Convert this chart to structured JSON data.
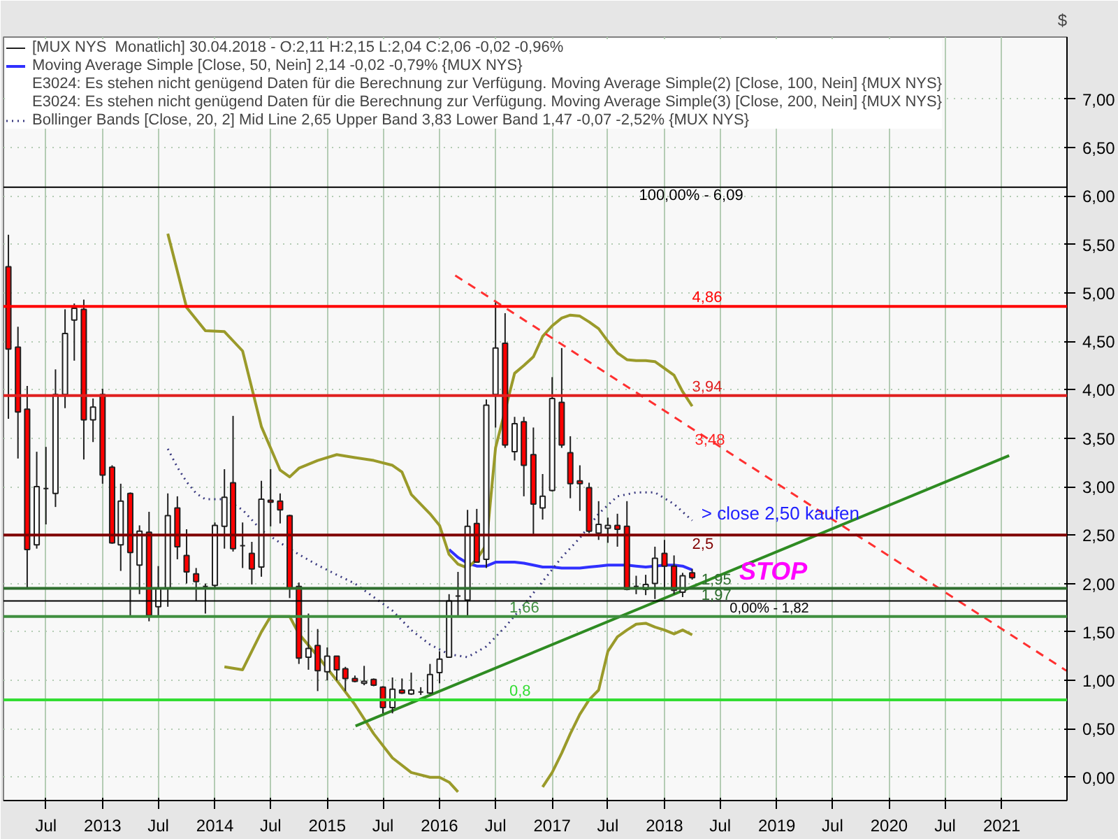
{
  "chart_data": {
    "type": "candlestick",
    "ylabel": "$",
    "legend": "top left",
    "grid": true,
    "xlim": [
      "2012-02-14",
      "2021-08-01"
    ],
    "ylim": [
      -0.24,
      7.64
    ],
    "xticks": [
      {
        "value": "2012-07",
        "label": "Jul"
      },
      {
        "value": "2013-01",
        "label": "2013"
      },
      {
        "value": "2013-07",
        "label": "Jul"
      },
      {
        "value": "2014-01",
        "label": "2014"
      },
      {
        "value": "2014-07",
        "label": "Jul"
      },
      {
        "value": "2015-01",
        "label": "2015"
      },
      {
        "value": "2015-07",
        "label": "Jul"
      },
      {
        "value": "2016-01",
        "label": "2016"
      },
      {
        "value": "2016-07",
        "label": "Jul"
      },
      {
        "value": "2017-01",
        "label": "2017"
      },
      {
        "value": "2017-07",
        "label": "Jul"
      },
      {
        "value": "2018-01",
        "label": "2018"
      },
      {
        "value": "2018-07",
        "label": "Jul"
      },
      {
        "value": "2019-01",
        "label": "2019"
      },
      {
        "value": "2019-07",
        "label": "Jul"
      },
      {
        "value": "2020-01",
        "label": "2020"
      },
      {
        "value": "2020-07",
        "label": "Jul"
      },
      {
        "value": "2021-01",
        "label": "2021"
      }
    ],
    "yticks": [
      {
        "value": 0,
        "label": "0,00"
      },
      {
        "value": 0.5,
        "label": "0,50"
      },
      {
        "value": 1,
        "label": "1,00"
      },
      {
        "value": 1.5,
        "label": "1,50"
      },
      {
        "value": 2,
        "label": "2,00"
      },
      {
        "value": 2.5,
        "label": "2,50"
      },
      {
        "value": 3,
        "label": "3,00"
      },
      {
        "value": 3.5,
        "label": "3,50"
      },
      {
        "value": 4,
        "label": "4,00"
      },
      {
        "value": 4.5,
        "label": "4,50"
      },
      {
        "value": 5,
        "label": "5,00"
      },
      {
        "value": 5.5,
        "label": "5,50"
      },
      {
        "value": 6,
        "label": "6,00"
      },
      {
        "value": 6.5,
        "label": "6,50"
      },
      {
        "value": 7,
        "label": "7,00"
      }
    ],
    "series": [
      {
        "name": "[MUX NYS  Monatlich] 30.04.2018 - O:2,11 H:2,15 L:2,04 C:2,06 -0,02 -0,96%",
        "colors": [
          "#ff0000",
          "#ff0000",
          "#ff0000",
          "#ffffff",
          "#202020",
          "#ffffff",
          "#ffffff",
          "#ffffff",
          "#ff0000",
          "#ffffff",
          "#ff0000",
          "#ff0000",
          "#ffffff",
          "#ff0000",
          "#ffffff",
          "#ff0000",
          "#ffffff",
          "#ffffff",
          "#ff0000",
          "#ff0000",
          "#ff0000",
          "#202020",
          "#ffffff",
          "#ffffff",
          "#ff0000",
          "#202020",
          "#ff0000",
          "#ffffff",
          "#ff0000",
          "#ff0000",
          "#ff0000",
          "#ff0000",
          "#ffffff",
          "#ff0000",
          "#ffffff",
          "#ff0000",
          "#ff0000",
          "#ff0000",
          "#ffffff",
          "#ff0000",
          "#ff0000",
          "#ffffff",
          "#ff0000",
          "#ffffff",
          "#202020",
          "#ffffff",
          "#ffffff",
          "#ffffff",
          "#202020",
          "#ffffff",
          "#ff0000",
          "#ffffff",
          "#ffffff",
          "#ff0000",
          "#ffffff",
          "#ff0000",
          "#ff0000",
          "#ffffff",
          "#ffffff",
          "#ff0000",
          "#ff0000",
          "#ff0000",
          "#ff0000",
          "#ffffff",
          "#ffffff",
          "#ff0000",
          "#ff0000",
          "#202020",
          "#ffffff",
          "#ffffff",
          "#ff0000",
          "#ff0000",
          "#ffffff",
          "#ff0000"
        ],
        "x": [
          "2012-03",
          "2012-04",
          "2012-05",
          "2012-06",
          "2012-07",
          "2012-08",
          "2012-09",
          "2012-10",
          "2012-11",
          "2012-12",
          "2013-01",
          "2013-02",
          "2013-03",
          "2013-04",
          "2013-05",
          "2013-06",
          "2013-07",
          "2013-08",
          "2013-09",
          "2013-10",
          "2013-11",
          "2013-12",
          "2014-01",
          "2014-02",
          "2014-03",
          "2014-04",
          "2014-05",
          "2014-06",
          "2014-07",
          "2014-08",
          "2014-09",
          "2014-10",
          "2014-11",
          "2014-12",
          "2015-01",
          "2015-02",
          "2015-03",
          "2015-04",
          "2015-05",
          "2015-06",
          "2015-07",
          "2015-08",
          "2015-09",
          "2015-10",
          "2015-11",
          "2015-12",
          "2016-01",
          "2016-02",
          "2016-03",
          "2016-04",
          "2016-05",
          "2016-06",
          "2016-07",
          "2016-08",
          "2016-09",
          "2016-10",
          "2016-11",
          "2016-12",
          "2017-01",
          "2017-02",
          "2017-03",
          "2017-04",
          "2017-05",
          "2017-06",
          "2017-07",
          "2017-08",
          "2017-09",
          "2017-10",
          "2017-11",
          "2017-12",
          "2018-01",
          "2018-02",
          "2018-03",
          "2018-04"
        ],
        "ohlc": [
          [
            5.27,
            5.6,
            3.7,
            4.42
          ],
          [
            4.44,
            4.65,
            3.29,
            3.77
          ],
          [
            3.8,
            4.04,
            1.95,
            2.35
          ],
          [
            2.4,
            3.36,
            2.36,
            3.0
          ],
          [
            2.98,
            3.41,
            2.61,
            2.98
          ],
          [
            2.93,
            4.21,
            2.79,
            3.95
          ],
          [
            3.95,
            4.83,
            3.81,
            4.58
          ],
          [
            4.72,
            4.89,
            4.3,
            4.84
          ],
          [
            4.83,
            4.93,
            3.28,
            3.69
          ],
          [
            3.69,
            3.91,
            3.46,
            3.82
          ],
          [
            3.95,
            4.01,
            3.03,
            3.12
          ],
          [
            3.2,
            3.22,
            2.41,
            2.42
          ],
          [
            2.4,
            3.03,
            2.13,
            2.85
          ],
          [
            2.93,
            2.94,
            1.67,
            2.32
          ],
          [
            2.19,
            2.6,
            1.89,
            2.54
          ],
          [
            2.53,
            2.74,
            1.61,
            1.67
          ],
          [
            1.76,
            2.18,
            1.66,
            1.95
          ],
          [
            1.95,
            2.93,
            1.76,
            2.7
          ],
          [
            2.78,
            2.9,
            2.25,
            2.38
          ],
          [
            2.29,
            2.56,
            2.0,
            2.12
          ],
          [
            2.1,
            2.16,
            1.82,
            2.02
          ],
          [
            1.97,
            2.0,
            1.69,
            1.97
          ],
          [
            1.98,
            2.63,
            1.95,
            2.6
          ],
          [
            2.59,
            3.18,
            2.36,
            2.89
          ],
          [
            3.04,
            3.73,
            2.33,
            2.36
          ],
          [
            2.39,
            2.63,
            2.16,
            2.39
          ],
          [
            2.31,
            2.43,
            1.99,
            2.15
          ],
          [
            2.17,
            3.06,
            2.07,
            2.87
          ],
          [
            2.86,
            3.18,
            2.59,
            2.84
          ],
          [
            2.85,
            2.93,
            2.62,
            2.76
          ],
          [
            2.7,
            2.71,
            1.85,
            1.95
          ],
          [
            1.97,
            2.01,
            1.17,
            1.23
          ],
          [
            1.24,
            1.69,
            1.11,
            1.33
          ],
          [
            1.36,
            1.53,
            0.89,
            1.1
          ],
          [
            1.09,
            1.34,
            1.0,
            1.25
          ],
          [
            1.25,
            1.25,
            1.0,
            1.11
          ],
          [
            1.12,
            1.14,
            0.89,
            1.02
          ],
          [
            1.02,
            1.05,
            0.98,
            0.99
          ],
          [
            0.97,
            1.15,
            0.95,
            0.99
          ],
          [
            1.01,
            1.02,
            0.94,
            0.95
          ],
          [
            0.93,
            0.94,
            0.66,
            0.72
          ],
          [
            0.72,
            1.03,
            0.66,
            0.91
          ],
          [
            0.9,
            1.02,
            0.86,
            0.87
          ],
          [
            0.86,
            1.08,
            0.85,
            0.9
          ],
          [
            0.88,
            0.93,
            0.85,
            0.88
          ],
          [
            0.87,
            1.17,
            0.86,
            1.06
          ],
          [
            1.08,
            1.3,
            0.97,
            1.22
          ],
          [
            1.24,
            1.89,
            1.24,
            1.82
          ],
          [
            1.87,
            2.12,
            1.66,
            1.87
          ],
          [
            1.83,
            2.76,
            1.66,
            2.59
          ],
          [
            2.62,
            2.77,
            2.22,
            2.22
          ],
          [
            2.25,
            3.9,
            2.16,
            3.84
          ],
          [
            3.95,
            4.9,
            3.61,
            4.43
          ],
          [
            4.48,
            4.79,
            3.4,
            3.43
          ],
          [
            3.36,
            3.72,
            3.27,
            3.65
          ],
          [
            3.67,
            3.72,
            2.9,
            3.22
          ],
          [
            3.33,
            3.61,
            2.5,
            2.82
          ],
          [
            2.78,
            3.13,
            2.66,
            2.9
          ],
          [
            2.96,
            4.13,
            2.95,
            3.91
          ],
          [
            3.87,
            4.43,
            3.4,
            3.43
          ],
          [
            3.35,
            3.52,
            2.88,
            3.03
          ],
          [
            3.06,
            3.22,
            2.75,
            3.03
          ],
          [
            2.99,
            3.04,
            2.52,
            2.54
          ],
          [
            2.52,
            2.85,
            2.45,
            2.61
          ],
          [
            2.57,
            2.68,
            2.42,
            2.6
          ],
          [
            2.6,
            2.72,
            2.38,
            2.56
          ],
          [
            2.59,
            2.85,
            1.93,
            1.94
          ],
          [
            1.97,
            2.08,
            1.89,
            1.97
          ],
          [
            1.94,
            2.09,
            1.88,
            1.99
          ],
          [
            2.0,
            2.38,
            1.84,
            2.26
          ],
          [
            2.31,
            2.45,
            1.93,
            2.18
          ],
          [
            2.18,
            2.29,
            1.89,
            1.93
          ],
          [
            1.91,
            2.11,
            1.86,
            2.08
          ],
          [
            2.11,
            2.15,
            2.04,
            2.06
          ]
        ]
      },
      {
        "type": "line",
        "name": "Moving Average Simple [Close, 50, Nein] 2,14 -0,02 -0,79% {MUX NYS}",
        "color": "#3030ff",
        "x": [
          "2016-02",
          "2016-03",
          "2016-04",
          "2016-05",
          "2016-06",
          "2016-07",
          "2016-08",
          "2016-09",
          "2016-10",
          "2016-11",
          "2016-12",
          "2017-01",
          "2017-02",
          "2017-03",
          "2017-04",
          "2017-05",
          "2017-06",
          "2017-07",
          "2017-08",
          "2017-09",
          "2017-10",
          "2017-11",
          "2017-12",
          "2018-01",
          "2018-02",
          "2018-03",
          "2018-04"
        ],
        "values": [
          2.35,
          2.27,
          2.21,
          2.18,
          2.18,
          2.22,
          2.22,
          2.22,
          2.21,
          2.19,
          2.17,
          2.17,
          2.16,
          2.16,
          2.16,
          2.17,
          2.18,
          2.19,
          2.19,
          2.19,
          2.18,
          2.17,
          2.18,
          2.19,
          2.19,
          2.18,
          2.14
        ]
      },
      {
        "type": "line",
        "color": "#9a9a2a",
        "x": [
          "2013-08",
          "2013-10",
          "2013-12",
          "2014-02",
          "2014-04",
          "2014-06",
          "2014-08",
          "2014-09",
          "2014-10",
          "2014-12",
          "2015-02",
          "2015-04",
          "2015-06",
          "2015-08",
          "2015-09",
          "2015-10",
          "2015-12",
          "2016-01",
          "2016-02",
          "2016-03",
          "2016-04",
          "2016-05",
          "2016-06",
          "2016-07",
          "2016-09",
          "2016-10",
          "2016-11",
          "2016-12",
          "2017-01",
          "2017-02",
          "2017-03",
          "2017-04",
          "2017-05",
          "2017-06",
          "2017-07",
          "2017-08",
          "2017-09",
          "2017-10",
          "2017-11",
          "2017-12",
          "2018-01",
          "2018-02",
          "2018-03",
          "2018-04"
        ],
        "values": [
          5.61,
          4.85,
          4.61,
          4.6,
          4.4,
          3.62,
          3.17,
          3.1,
          3.19,
          3.27,
          3.33,
          3.3,
          3.27,
          3.22,
          3.15,
          2.92,
          2.72,
          2.6,
          2.3,
          2.2,
          2.16,
          2.25,
          2.4,
          3.4,
          4.17,
          4.25,
          4.34,
          4.55,
          4.66,
          4.74,
          4.77,
          4.76,
          4.7,
          4.63,
          4.5,
          4.38,
          4.31,
          4.3,
          4.3,
          4.29,
          4.22,
          4.15,
          3.98,
          3.83
        ]
      },
      {
        "type": "line",
        "color": "#9a9a2a",
        "x": [
          "2014-02",
          "2014-04",
          "2014-06",
          "2014-07",
          "2014-09",
          "2014-10",
          "2014-12",
          "2015-02",
          "2015-04",
          "2015-06",
          "2015-08",
          "2015-10",
          "2015-12",
          "2016-01",
          "2016-02",
          "2016-03",
          "2016-04",
          "2016-12",
          "2017-01",
          "2017-02",
          "2017-03",
          "2017-04",
          "2017-05",
          "2017-06",
          "2017-07",
          "2017-08",
          "2017-09",
          "2017-10",
          "2017-11",
          "2017-12",
          "2018-01",
          "2018-02",
          "2018-03",
          "2018-04"
        ],
        "values": [
          1.14,
          1.11,
          1.5,
          1.66,
          1.66,
          1.48,
          1.25,
          1.0,
          0.75,
          0.45,
          0.2,
          0.05,
          0.0,
          0.0,
          -0.05,
          -0.15,
          null,
          -0.1,
          0.05,
          0.25,
          0.45,
          0.65,
          0.8,
          0.9,
          1.3,
          1.45,
          1.52,
          1.58,
          1.59,
          1.55,
          1.52,
          1.48,
          1.52,
          1.47
        ]
      },
      {
        "type": "line",
        "name": "Bollinger Bands [Close, 20, 2] Mid Line 2,65 Upper Band 3,83 Lower Band 1,47 -0,07 -2,52% {MUX NYS}",
        "color": "#3a3a80",
        "line_style": "dotted",
        "x": [
          "2013-08",
          "2013-09",
          "2013-10",
          "2013-11",
          "2013-12",
          "2014-02",
          "2014-03",
          "2014-04",
          "2014-06",
          "2014-08",
          "2014-10",
          "2014-12",
          "2015-02",
          "2015-04",
          "2015-06",
          "2015-08",
          "2015-10",
          "2015-12",
          "2016-02",
          "2016-04",
          "2016-06",
          "2016-08",
          "2016-10",
          "2016-12",
          "2017-02",
          "2017-04",
          "2017-06",
          "2017-08",
          "2017-10",
          "2017-12",
          "2018-02",
          "2018-04"
        ],
        "values": [
          3.39,
          3.2,
          3.05,
          2.93,
          2.87,
          2.87,
          2.82,
          2.76,
          2.55,
          2.42,
          2.3,
          2.19,
          2.09,
          2.0,
          1.86,
          1.72,
          1.52,
          1.37,
          1.27,
          1.24,
          1.35,
          1.55,
          1.78,
          2.02,
          2.27,
          2.47,
          2.72,
          2.9,
          2.94,
          2.94,
          2.82,
          2.65
        ]
      },
      {
        "type": "line",
        "color": "#2e8b22",
        "x": [
          "2015-04-03",
          "2021-01-25"
        ],
        "values": [
          0.53,
          3.32
        ]
      },
      {
        "type": "line",
        "color": "#ff3030",
        "line_style": "dashed",
        "x": [
          "2016-02-21",
          "2021-07-30"
        ],
        "values": [
          5.18,
          1.1
        ]
      }
    ],
    "ref_lines": [
      {
        "axis": "y",
        "value": 6.09,
        "color": "#000000"
      },
      {
        "axis": "y",
        "value": 4.86,
        "label": "4,86",
        "color": "#ff0000"
      },
      {
        "axis": "y",
        "value": 3.94,
        "label": "3,94",
        "color": "#e02020"
      },
      {
        "axis": "y",
        "value": 2.5,
        "label": "2,5",
        "color": "#800000"
      },
      {
        "axis": "y",
        "value": 1.95,
        "label": "1,95",
        "color": "#2e6e2e"
      },
      {
        "axis": "y",
        "value": 1.82,
        "color": "#000000"
      },
      {
        "axis": "y",
        "value": 1.66,
        "label": "1,66",
        "color": "#3f8f3f"
      },
      {
        "axis": "y",
        "value": 0.8,
        "label": "0,8",
        "color": "#33dd33"
      }
    ],
    "annotations": [
      "E3024: Es stehen nicht genügend Daten für die Berechnung zur Verfügung. Moving Average Simple(2) [Close, 100, Nein] {MUX NYS}",
      "E3024: Es stehen nicht genügend Daten für die Berechnung zur Verfügung. Moving Average Simple(3) [Close, 200, Nein] {MUX NYS}",
      "100,00% - 6,09",
      "0,00% - 1,82",
      "3,48",
      "> close 2,50 kaufen",
      "STOP",
      "1,97"
    ]
  }
}
